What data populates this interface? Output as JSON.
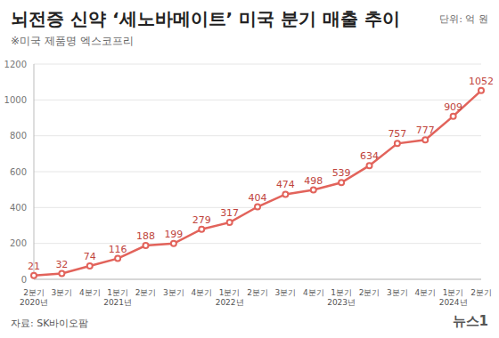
{
  "chart_data": {
    "type": "line",
    "title": "뇌전증 신약 ‘세노바메이트’ 미국 분기 매출 추이",
    "subtitle": "※미국 제품명 엑스코프리",
    "unit": "단위: 억 원",
    "source": "자료: SK바이오팜",
    "logo": "뉴스1",
    "categories": [
      "2분기 2020년",
      "3분기",
      "4분기",
      "1분기 2021년",
      "2분기",
      "3분기",
      "4분기",
      "1분기 2022년",
      "2분기",
      "3분기",
      "4분기",
      "1분기 2023년",
      "2분기",
      "3분기",
      "4분기",
      "1분기 2024년",
      "2분기"
    ],
    "values": [
      21,
      32,
      74,
      116,
      188,
      199,
      279,
      317,
      404,
      474,
      498,
      539,
      634,
      757,
      777,
      909,
      1052
    ],
    "color": "#e2635b",
    "marker": "circle",
    "ylim": [
      0,
      1200
    ],
    "yticks": [
      0,
      200,
      400,
      600,
      800,
      1000,
      1200
    ],
    "grid": true,
    "data_labels": true
  }
}
